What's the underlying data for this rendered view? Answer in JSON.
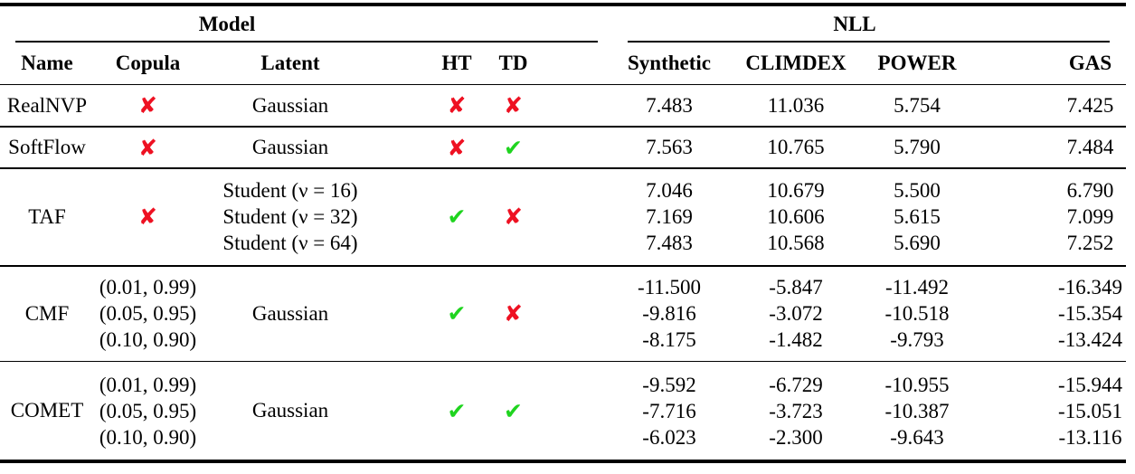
{
  "table": {
    "groups": {
      "model": "Model",
      "nll": "NLL"
    },
    "columns": {
      "name": "Name",
      "copula": "Copula",
      "latent": "Latent",
      "ht": "HT",
      "td": "TD",
      "synthetic": "Synthetic",
      "climdex": "CLIMDEX",
      "power": "POWER",
      "gas": "GAS"
    },
    "mark_colors": {
      "check": "#1fd41f",
      "cross": "#ee1122"
    },
    "rows": [
      {
        "name": "RealNVP",
        "copula_mark": "✘",
        "latent": [
          "Gaussian"
        ],
        "ht": "✘",
        "td": "✘",
        "nll": {
          "synthetic": [
            "7.483"
          ],
          "climdex": [
            "11.036"
          ],
          "power": [
            "5.754"
          ],
          "gas": [
            "7.425"
          ]
        }
      },
      {
        "name": "SoftFlow",
        "copula_mark": "✘",
        "latent": [
          "Gaussian"
        ],
        "ht": "✘",
        "td": "✔",
        "nll": {
          "synthetic": [
            "7.563"
          ],
          "climdex": [
            "10.765"
          ],
          "power": [
            "5.790"
          ],
          "gas": [
            "7.484"
          ]
        }
      },
      {
        "name": "TAF",
        "copula_mark": "✘",
        "latent": [
          "Student (ν = 16)",
          "Student (ν = 32)",
          "Student (ν = 64)"
        ],
        "ht": "✔",
        "td": "✘",
        "nll": {
          "synthetic": [
            "7.046",
            "7.169",
            "7.483"
          ],
          "climdex": [
            "10.679",
            "10.606",
            "10.568"
          ],
          "power": [
            "5.500",
            "5.615",
            "5.690"
          ],
          "gas": [
            "6.790",
            "7.099",
            "7.252"
          ]
        }
      },
      {
        "name": "CMF",
        "copula_lines": [
          "(0.01, 0.99)",
          "(0.05, 0.95)",
          "(0.10, 0.90)"
        ],
        "latent": [
          "Gaussian"
        ],
        "ht": "✔",
        "td": "✘",
        "nll": {
          "synthetic": [
            "-11.500",
            "-9.816",
            "-8.175"
          ],
          "climdex": [
            "-5.847",
            "-3.072",
            "-1.482"
          ],
          "power": [
            "-11.492",
            "-10.518",
            "-9.793"
          ],
          "gas": [
            "-16.349",
            "-15.354",
            "-13.424"
          ]
        }
      },
      {
        "name": "COMET",
        "copula_lines": [
          "(0.01, 0.99)",
          "(0.05, 0.95)",
          "(0.10, 0.90)"
        ],
        "latent": [
          "Gaussian"
        ],
        "ht": "✔",
        "td": "✔",
        "nll": {
          "synthetic": [
            "-9.592",
            "-7.716",
            "-6.023"
          ],
          "climdex": [
            "-6.729",
            "-3.723",
            "-2.300"
          ],
          "power": [
            "-10.955",
            "-10.387",
            "-9.643"
          ],
          "gas": [
            "-15.944",
            "-15.051",
            "-13.116"
          ]
        }
      }
    ]
  }
}
